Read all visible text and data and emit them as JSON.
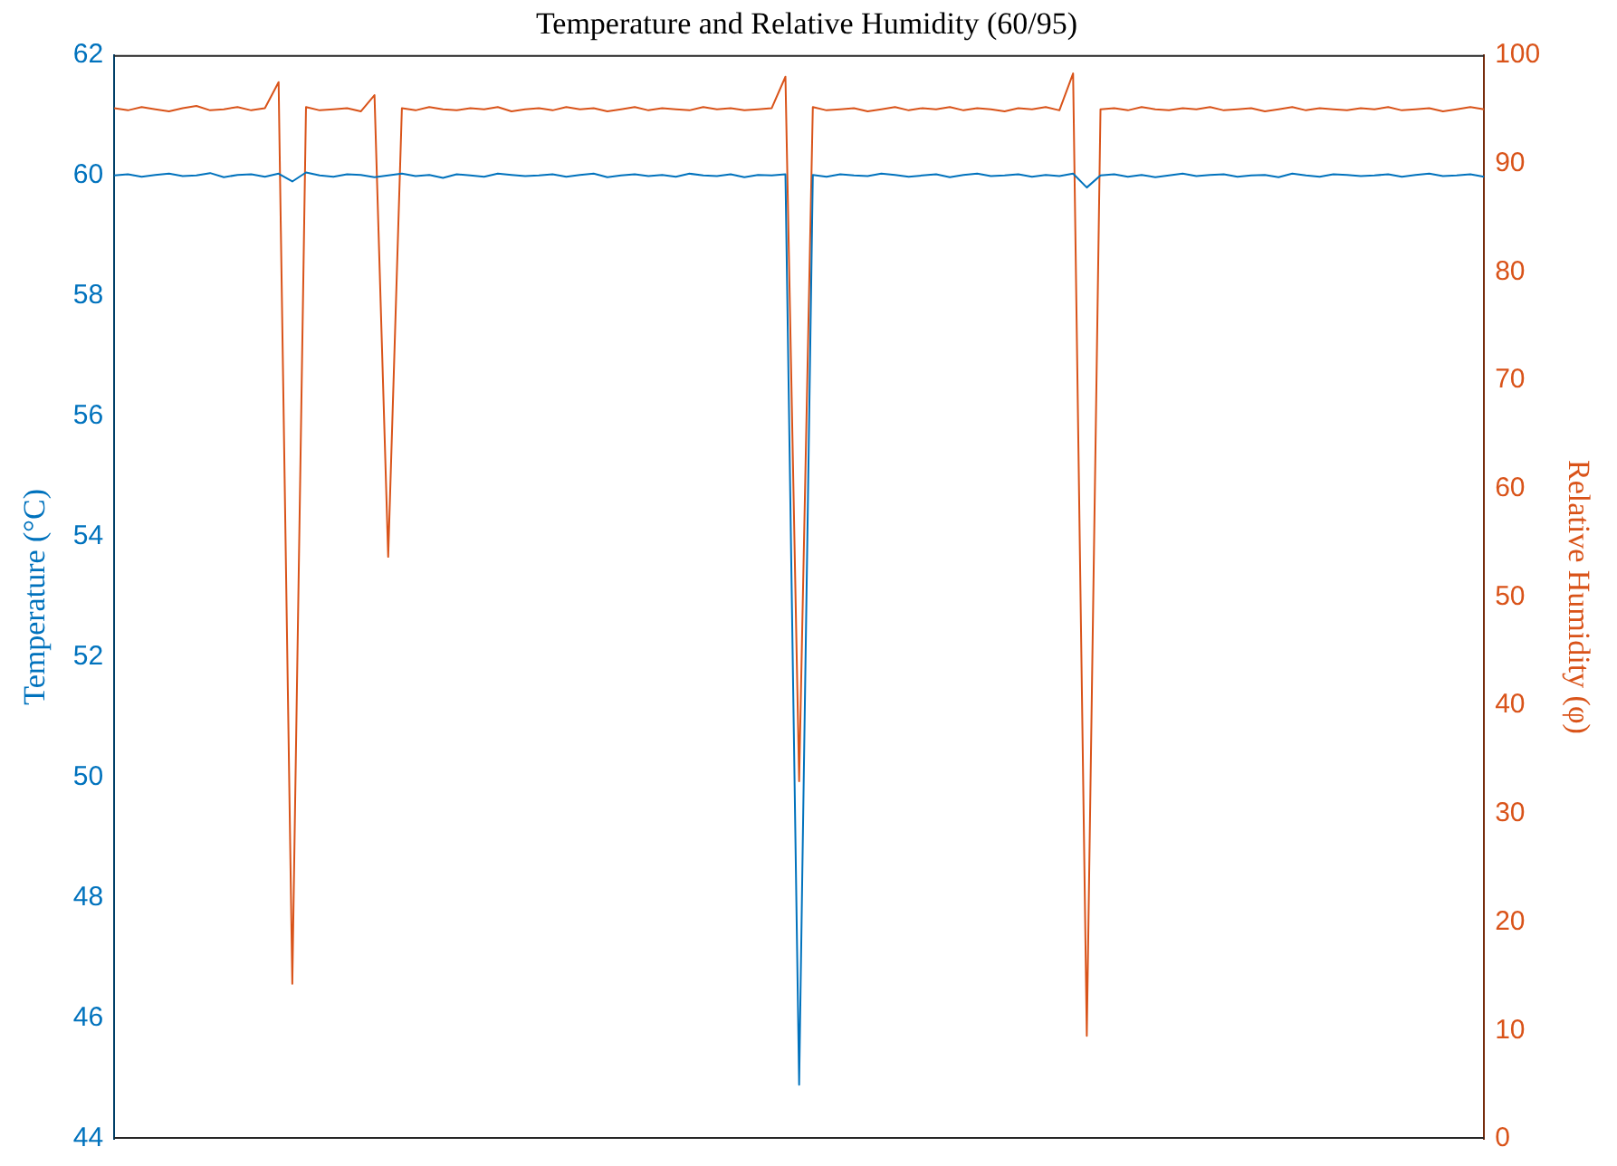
{
  "chart_data": {
    "type": "line",
    "title": "Temperature and Relative Humidity (60/95)",
    "ylabel": "Temperature (°C)",
    "y2label": "Relative Humidity (φ)",
    "categories": [
      null,
      null,
      null,
      null,
      null,
      null,
      null,
      null,
      null,
      null,
      null,
      null,
      null,
      null,
      null,
      null,
      null,
      null,
      null,
      null,
      null,
      null,
      null,
      null,
      null,
      null,
      null,
      null,
      null,
      null,
      null,
      null,
      null,
      null,
      null,
      null,
      null,
      null,
      null,
      null,
      null,
      null,
      null,
      null,
      null,
      null,
      null,
      null,
      null,
      null,
      null,
      null,
      null,
      null,
      null,
      null,
      null,
      null,
      null,
      null,
      null,
      null,
      null,
      null,
      null,
      null,
      null,
      null,
      null,
      null,
      null,
      null,
      null,
      null,
      null,
      null,
      null,
      null,
      null,
      null,
      null,
      null,
      null,
      null,
      null,
      null,
      null,
      null,
      null,
      null,
      null,
      null,
      null,
      null,
      null,
      null,
      null,
      null,
      null,
      null,
      null
    ],
    "series": [
      {
        "color": "#0072bd",
        "values": [
          60.0,
          60.02,
          59.98,
          60.01,
          60.03,
          59.99,
          60.0,
          60.04,
          59.97,
          60.01,
          60.02,
          59.98,
          60.03,
          59.9,
          60.05,
          60.0,
          59.98,
          60.02,
          60.01,
          59.97,
          60.0,
          60.03,
          59.99,
          60.01,
          59.96,
          60.02,
          60.0,
          59.98,
          60.03,
          60.01,
          59.99,
          60.0,
          60.02,
          59.98,
          60.01,
          60.03,
          59.97,
          60.0,
          60.02,
          59.99,
          60.01,
          59.98,
          60.03,
          60.0,
          59.99,
          60.02,
          59.97,
          60.01,
          60.0,
          60.02,
          44.9,
          60.01,
          59.98,
          60.02,
          60.0,
          59.99,
          60.03,
          60.01,
          59.98,
          60.0,
          60.02,
          59.97,
          60.01,
          60.03,
          59.99,
          60.0,
          60.02,
          59.98,
          60.01,
          59.99,
          60.03,
          59.8,
          60.0,
          60.02,
          59.98,
          60.01,
          59.97,
          60.0,
          60.03,
          59.99,
          60.01,
          60.02,
          59.98,
          60.0,
          60.01,
          59.97,
          60.03,
          60.0,
          59.98,
          60.02,
          60.01,
          59.99,
          60.0,
          60.02,
          59.98,
          60.01,
          60.03,
          59.99,
          60.0,
          60.02,
          59.98
        ]
      },
      {
        "color": "#d95319",
        "axis": "y2",
        "values": [
          95.1,
          94.9,
          95.2,
          95.0,
          94.8,
          95.1,
          95.3,
          94.9,
          95.0,
          95.2,
          94.9,
          95.1,
          97.5,
          14.3,
          95.2,
          94.9,
          95.0,
          95.1,
          94.8,
          96.3,
          53.7,
          95.1,
          94.9,
          95.2,
          95.0,
          94.9,
          95.1,
          95.0,
          95.2,
          94.8,
          95.0,
          95.1,
          94.9,
          95.2,
          95.0,
          95.1,
          94.8,
          95.0,
          95.2,
          94.9,
          95.1,
          95.0,
          94.9,
          95.2,
          95.0,
          95.1,
          94.9,
          95.0,
          95.1,
          98.0,
          33,
          95.2,
          94.9,
          95.0,
          95.1,
          94.8,
          95.0,
          95.2,
          94.9,
          95.1,
          95.0,
          95.2,
          94.9,
          95.1,
          95.0,
          94.8,
          95.1,
          95.0,
          95.2,
          94.9,
          98.3,
          9.5,
          95.0,
          95.1,
          94.9,
          95.2,
          95.0,
          94.9,
          95.1,
          95.0,
          95.2,
          94.9,
          95.0,
          95.1,
          94.8,
          95.0,
          95.2,
          94.9,
          95.1,
          95.0,
          94.9,
          95.1,
          95.0,
          95.2,
          94.9,
          95.0,
          95.1,
          94.8,
          95.0,
          95.2,
          95.0
        ]
      }
    ],
    "ylim": [
      44,
      62
    ],
    "yticks": [
      44,
      46,
      48,
      50,
      52,
      54,
      56,
      58,
      60,
      62
    ],
    "y2lim": [
      0,
      100
    ],
    "y2ticks": [
      0,
      10,
      20,
      30,
      40,
      50,
      60,
      70,
      80,
      90,
      100
    ],
    "grid": false,
    "legend": false,
    "marker": "none",
    "line_style": "solid"
  }
}
